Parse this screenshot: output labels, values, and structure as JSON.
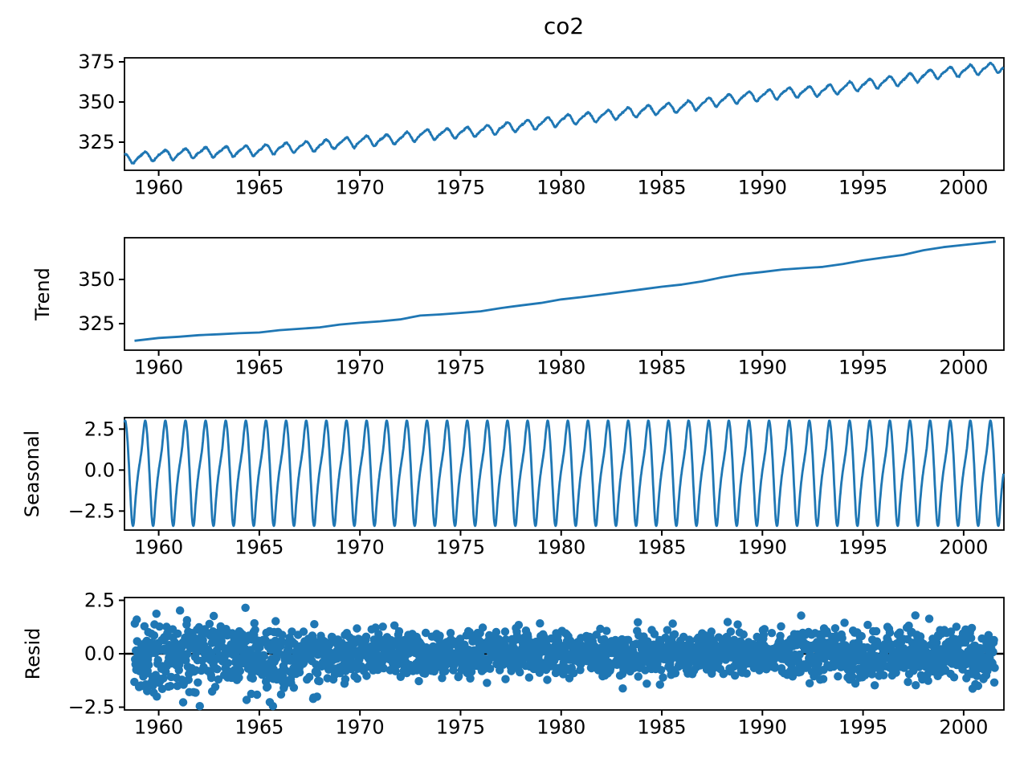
{
  "figure": {
    "background": "#ffffff"
  },
  "style": {
    "series_color": "#1f77b4",
    "axis_color": "#000000",
    "zero_line_color": "#000000"
  },
  "x_axis": {
    "lim": [
      1958.3,
      2002.0
    ],
    "ticks": [
      {
        "v": 1960,
        "label": "1960"
      },
      {
        "v": 1965,
        "label": "1965"
      },
      {
        "v": 1970,
        "label": "1970"
      },
      {
        "v": 1975,
        "label": "1975"
      },
      {
        "v": 1980,
        "label": "1980"
      },
      {
        "v": 1985,
        "label": "1985"
      },
      {
        "v": 1990,
        "label": "1990"
      },
      {
        "v": 1995,
        "label": "1995"
      },
      {
        "v": 2000,
        "label": "2000"
      }
    ]
  },
  "chart_data": [
    {
      "id": "observed",
      "type": "line",
      "title": "co2",
      "ylabel": null,
      "yticks": [
        {
          "v": 325,
          "label": "325"
        },
        {
          "v": 350,
          "label": "350"
        },
        {
          "v": 375,
          "label": "375"
        }
      ],
      "ylim": [
        307.5,
        377.5
      ],
      "x_range": [
        1958.3,
        2001.98
      ],
      "points_per_year": 52,
      "noise_sd": 0.22,
      "composition": "trend + seasonal + noise"
    },
    {
      "id": "trend",
      "type": "line",
      "ylabel": "Trend",
      "yticks": [
        {
          "v": 325,
          "label": "325"
        },
        {
          "v": 350,
          "label": "350"
        }
      ],
      "ylim": [
        310.0,
        373.6
      ],
      "points": [
        [
          1958.8,
          315.3
        ],
        [
          1960,
          316.9
        ],
        [
          1961,
          317.6
        ],
        [
          1962,
          318.5
        ],
        [
          1963,
          319.0
        ],
        [
          1964,
          319.6
        ],
        [
          1965,
          320.0
        ],
        [
          1966,
          321.3
        ],
        [
          1967,
          322.1
        ],
        [
          1968,
          322.9
        ],
        [
          1969,
          324.5
        ],
        [
          1970,
          325.5
        ],
        [
          1971,
          326.3
        ],
        [
          1972,
          327.4
        ],
        [
          1973,
          329.6
        ],
        [
          1974,
          330.2
        ],
        [
          1975,
          331.1
        ],
        [
          1976,
          332.0
        ],
        [
          1977,
          333.8
        ],
        [
          1978,
          335.3
        ],
        [
          1979,
          336.7
        ],
        [
          1980,
          338.7
        ],
        [
          1981,
          340.0
        ],
        [
          1982,
          341.4
        ],
        [
          1983,
          342.9
        ],
        [
          1984,
          344.4
        ],
        [
          1985,
          345.9
        ],
        [
          1986,
          347.1
        ],
        [
          1987,
          348.9
        ],
        [
          1988,
          351.2
        ],
        [
          1989,
          353.0
        ],
        [
          1990,
          354.2
        ],
        [
          1991,
          355.6
        ],
        [
          1992,
          356.4
        ],
        [
          1993,
          357.1
        ],
        [
          1994,
          358.7
        ],
        [
          1995,
          360.8
        ],
        [
          1996,
          362.4
        ],
        [
          1997,
          363.9
        ],
        [
          1998,
          366.5
        ],
        [
          1999,
          368.3
        ],
        [
          2000,
          369.5
        ],
        [
          2001.6,
          371.4
        ]
      ]
    },
    {
      "id": "seasonal",
      "type": "line",
      "ylabel": "Seasonal",
      "yticks": [
        {
          "v": -2.5,
          "label": "−2.5"
        },
        {
          "v": 0,
          "label": "0.0"
        },
        {
          "v": 2.5,
          "label": "2.5"
        }
      ],
      "ylim": [
        -3.66,
        3.2
      ],
      "x_range": [
        1958.3,
        2001.98
      ],
      "period_years": 1,
      "monthly_values": [
        -0.03,
        0.64,
        1.38,
        2.45,
        3.02,
        2.33,
        0.78,
        -1.24,
        -3.05,
        -3.32,
        -2.02,
        -0.88
      ]
    },
    {
      "id": "resid",
      "type": "scatter",
      "ylabel": "Resid",
      "yticks": [
        {
          "v": -2.5,
          "label": "−2.5"
        },
        {
          "v": 0,
          "label": "0.0"
        },
        {
          "v": 2.5,
          "label": "2.5"
        }
      ],
      "ylim": [
        -2.63,
        2.63
      ],
      "x_range": [
        1958.79,
        2001.55
      ],
      "points_per_year": 52,
      "zero_line": true,
      "noise": {
        "seed": 11,
        "eras": [
          [
            1963,
            0.8
          ],
          [
            1968,
            0.74
          ],
          [
            1975,
            0.55
          ],
          [
            1990,
            0.5
          ],
          [
            2002.2,
            0.63
          ]
        ],
        "neg_skew_until": 1968,
        "clamp": 2.45
      }
    }
  ]
}
